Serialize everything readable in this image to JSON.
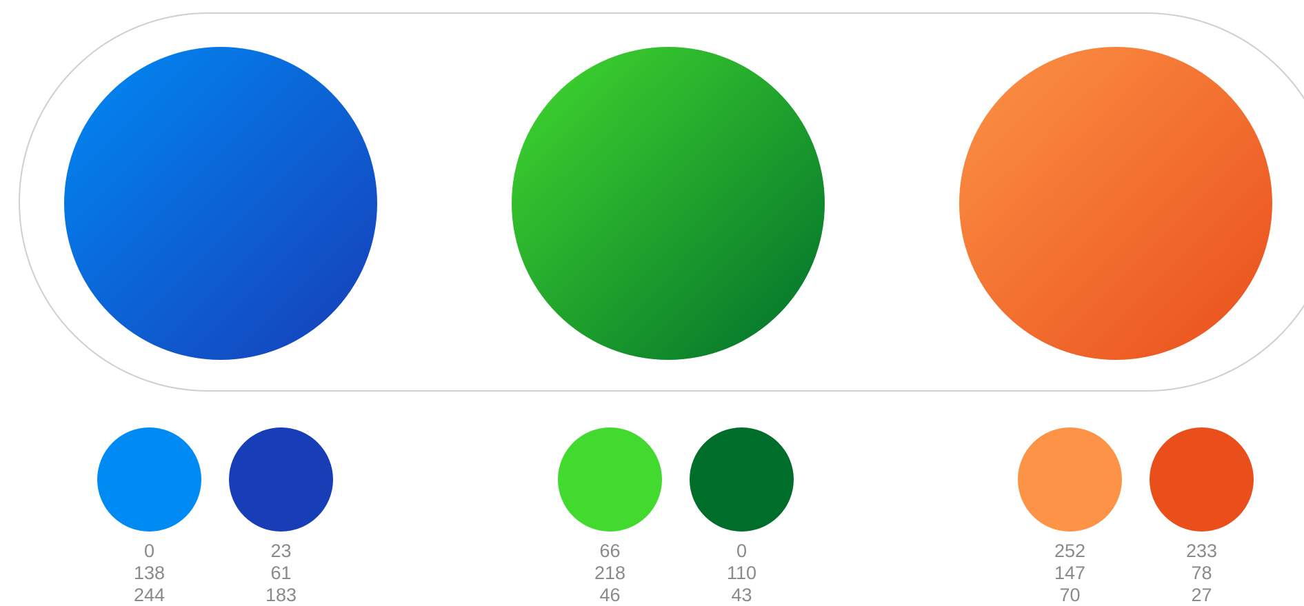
{
  "gradients": [
    {
      "id": "blue",
      "from": {
        "hex": "#008AF4",
        "r": "0",
        "g": "138",
        "b": "244"
      },
      "to": {
        "hex": "#173DB7",
        "r": "23",
        "g": "61",
        "b": "183"
      }
    },
    {
      "id": "green",
      "from": {
        "hex": "#42DA2E",
        "r": "66",
        "g": "218",
        "b": "46"
      },
      "to": {
        "hex": "#006E2B",
        "r": "0",
        "g": "110",
        "b": "43"
      }
    },
    {
      "id": "orange",
      "from": {
        "hex": "#FC9346",
        "r": "252",
        "g": "147",
        "b": "70"
      },
      "to": {
        "hex": "#E94E1B",
        "r": "233",
        "g": "78",
        "b": "27"
      }
    }
  ],
  "colors": {
    "frame_border": "#CFCFCF",
    "label_text": "#8A8A8A",
    "background": "#FFFFFF"
  }
}
